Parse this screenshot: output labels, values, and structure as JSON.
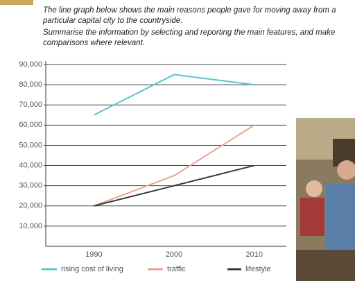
{
  "header": {
    "lines": [
      "The line graph below shows the main reasons people gave for moving away from a",
      "particular capital city to the countryside.",
      "Summarise the information by selecting and reporting the main features, and make",
      "comparisons where relevant."
    ]
  },
  "chart_data": {
    "type": "line",
    "x": [
      1990,
      2000,
      2010
    ],
    "xlim": [
      1984,
      2014
    ],
    "xticks": [
      1990,
      2000,
      2010
    ],
    "ylim": [
      0,
      90000
    ],
    "yticks": [
      {
        "value": 10000,
        "label": "10,000"
      },
      {
        "value": 20000,
        "label": "20,000"
      },
      {
        "value": 30000,
        "label": "30,000"
      },
      {
        "value": 40000,
        "label": "40,000"
      },
      {
        "value": 50000,
        "label": "50,000"
      },
      {
        "value": 60000,
        "label": "60,000"
      },
      {
        "value": 70000,
        "label": "70,000"
      },
      {
        "value": 80000,
        "label": "80,000"
      },
      {
        "value": 90000,
        "label": "90,000"
      }
    ],
    "grid": true,
    "legend": "bottom",
    "series": [
      {
        "name": "rising cost of living",
        "color": "#5cc3cb",
        "values": [
          65000,
          85000,
          80000
        ]
      },
      {
        "name": "traffic",
        "color": "#eaa392",
        "values": [
          20000,
          35000,
          60000
        ]
      },
      {
        "name": "lifestyle",
        "color": "#3a3a3a",
        "values": [
          20000,
          30000,
          40000
        ]
      }
    ]
  }
}
